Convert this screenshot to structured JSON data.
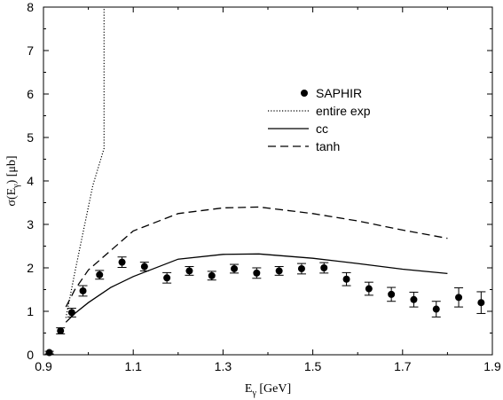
{
  "chart_data": {
    "type": "scatter",
    "xlim": [
      0.9,
      1.9
    ],
    "ylim": [
      0,
      8
    ],
    "x_ticks": [
      0.9,
      1.1,
      1.3,
      1.5,
      1.7,
      1.9
    ],
    "y_ticks": [
      0,
      1,
      2,
      3,
      4,
      5,
      6,
      7,
      8
    ],
    "x_tick_labels": [
      "0.9",
      "1.1",
      "1.3",
      "1.5",
      "1.7",
      "1.9"
    ],
    "y_tick_labels": [
      "0",
      "1",
      "2",
      "3",
      "4",
      "5",
      "6",
      "7",
      "8"
    ],
    "xlabel": {
      "main": "E",
      "sub": "γ",
      "unit": " [GeV]"
    },
    "ylabel": {
      "pre": "σ(E",
      "sub": "γ",
      "post": ") [μb]"
    },
    "grid": false,
    "legend_position": "top-right",
    "series": [
      {
        "name": "SAPHIR",
        "style": "points-with-errorbars",
        "x": [
          0.913,
          0.938,
          0.963,
          0.988,
          1.025,
          1.075,
          1.125,
          1.175,
          1.225,
          1.275,
          1.325,
          1.375,
          1.425,
          1.475,
          1.525,
          1.575,
          1.625,
          1.675,
          1.725,
          1.775,
          1.825,
          1.875
        ],
        "y": [
          0.05,
          0.55,
          0.97,
          1.47,
          1.84,
          2.13,
          2.03,
          1.77,
          1.93,
          1.82,
          1.98,
          1.88,
          1.93,
          1.98,
          2.0,
          1.74,
          1.52,
          1.39,
          1.27,
          1.05,
          1.32,
          1.2
        ],
        "err": [
          0.03,
          0.07,
          0.1,
          0.12,
          0.1,
          0.12,
          0.1,
          0.12,
          0.1,
          0.1,
          0.1,
          0.12,
          0.1,
          0.12,
          0.12,
          0.15,
          0.15,
          0.16,
          0.17,
          0.18,
          0.22,
          0.25
        ]
      },
      {
        "name": "entire exp",
        "style": "dotted",
        "x": [
          0.95,
          0.97,
          0.99,
          1.01,
          1.035,
          1.035
        ],
        "y": [
          0.85,
          1.9,
          2.9,
          3.9,
          4.75,
          8.0
        ]
      },
      {
        "name": "cc",
        "style": "solid",
        "x": [
          0.95,
          0.97,
          1.0,
          1.05,
          1.1,
          1.2,
          1.3,
          1.38,
          1.5,
          1.6,
          1.7,
          1.8
        ],
        "y": [
          0.75,
          0.95,
          1.2,
          1.55,
          1.8,
          2.2,
          2.31,
          2.32,
          2.22,
          2.1,
          1.97,
          1.87
        ]
      },
      {
        "name": "tanh",
        "style": "dashed",
        "x": [
          0.95,
          0.97,
          1.0,
          1.05,
          1.1,
          1.2,
          1.3,
          1.38,
          1.5,
          1.6,
          1.7,
          1.8
        ],
        "y": [
          1.1,
          1.5,
          1.95,
          2.4,
          2.85,
          3.25,
          3.38,
          3.4,
          3.25,
          3.08,
          2.87,
          2.68
        ]
      }
    ],
    "colors": {
      "ink": "#000000",
      "background": "#ffffff"
    }
  }
}
